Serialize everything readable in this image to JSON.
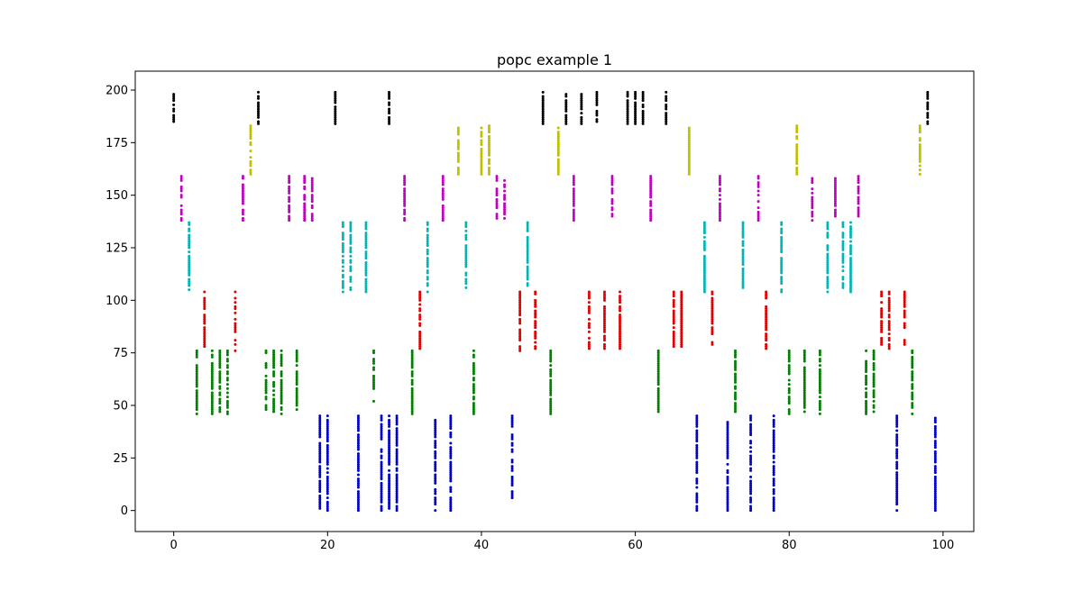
{
  "chart_data": {
    "type": "scatter",
    "title": "popc example 1",
    "xlabel": "",
    "ylabel": "",
    "xlim": [
      -5,
      104
    ],
    "ylim": [
      -10,
      209
    ],
    "xticks": [
      0,
      20,
      40,
      60,
      80,
      100
    ],
    "yticks": [
      0,
      25,
      50,
      75,
      100,
      125,
      150,
      175,
      200
    ],
    "grid": false,
    "legend": "none",
    "marker_size": 1.5,
    "series": [
      {
        "color": "#0000cc",
        "label_range": [
          0,
          45
        ],
        "x": [
          19,
          20,
          24,
          27,
          28,
          29,
          34,
          36,
          44,
          68,
          72,
          75,
          78,
          94,
          99
        ],
        "y_min": [
          1,
          0,
          0,
          0,
          1,
          0,
          0,
          0,
          6,
          0,
          0,
          0,
          0,
          0,
          0
        ],
        "y_max": [
          45,
          45,
          45,
          45,
          45,
          45,
          43,
          45,
          45,
          45,
          42,
          45,
          45,
          45,
          44
        ]
      },
      {
        "color": "#007f00",
        "label_range": [
          46,
          76
        ],
        "x": [
          3,
          5,
          6,
          7,
          12,
          13,
          14,
          16,
          26,
          31,
          39,
          49,
          63,
          73,
          80,
          82,
          84,
          90,
          91,
          96
        ],
        "y_min": [
          46,
          46,
          47,
          46,
          48,
          47,
          46,
          48,
          52,
          46,
          46,
          46,
          47,
          47,
          46,
          47,
          46,
          46,
          47,
          46
        ],
        "y_max": [
          76,
          76,
          76,
          76,
          76,
          76,
          76,
          76,
          76,
          76,
          76,
          76,
          76,
          76,
          76,
          76,
          76,
          76,
          76,
          76
        ]
      },
      {
        "color": "#e00000",
        "label_range": [
          76,
          104
        ],
        "x": [
          4,
          8,
          32,
          45,
          47,
          54,
          56,
          58,
          65,
          66,
          70,
          77,
          92,
          93,
          95
        ],
        "y_min": [
          78,
          76,
          77,
          76,
          77,
          77,
          77,
          77,
          78,
          78,
          79,
          77,
          79,
          77,
          79
        ],
        "y_max": [
          104,
          104,
          104,
          104,
          104,
          104,
          104,
          104,
          104,
          104,
          104,
          104,
          104,
          104,
          104
        ]
      },
      {
        "color": "#00b5b5",
        "label_range": [
          105,
          137
        ],
        "x": [
          2,
          22,
          23,
          25,
          33,
          38,
          46,
          69,
          74,
          79,
          85,
          87,
          88
        ],
        "y_min": [
          105,
          104,
          105,
          104,
          104,
          106,
          107,
          104,
          106,
          104,
          104,
          106,
          104
        ],
        "y_max": [
          137,
          137,
          137,
          137,
          137,
          137,
          137,
          137,
          137,
          137,
          137,
          137,
          137
        ]
      },
      {
        "color": "#bf00bf",
        "label_range": [
          138,
          159
        ],
        "x": [
          1,
          9,
          15,
          17,
          18,
          30,
          35,
          42,
          43,
          52,
          57,
          62,
          71,
          76,
          83,
          86,
          89
        ],
        "y_min": [
          138,
          138,
          138,
          138,
          138,
          138,
          138,
          139,
          139,
          138,
          140,
          138,
          138,
          138,
          138,
          140,
          140
        ],
        "y_max": [
          159,
          159,
          159,
          159,
          158,
          159,
          159,
          159,
          157,
          159,
          159,
          159,
          159,
          159,
          158,
          158,
          159
        ]
      },
      {
        "color": "#bfbf00",
        "label_range": [
          160,
          183
        ],
        "x": [
          10,
          37,
          40,
          41,
          50,
          67,
          81,
          97
        ],
        "y_min": [
          160,
          160,
          160,
          160,
          160,
          160,
          160,
          160
        ],
        "y_max": [
          183,
          182,
          182,
          183,
          182,
          182,
          183,
          183
        ]
      },
      {
        "color": "#000000",
        "label_range": [
          184,
          199
        ],
        "x": [
          0,
          11,
          21,
          28,
          48,
          51,
          53,
          55,
          59,
          60,
          61,
          64,
          98
        ],
        "y_min": [
          185,
          184,
          184,
          184,
          184,
          184,
          184,
          185,
          184,
          184,
          184,
          184,
          184
        ],
        "y_max": [
          198,
          199,
          199,
          199,
          199,
          198,
          198,
          199,
          199,
          199,
          199,
          199,
          199
        ]
      }
    ]
  }
}
